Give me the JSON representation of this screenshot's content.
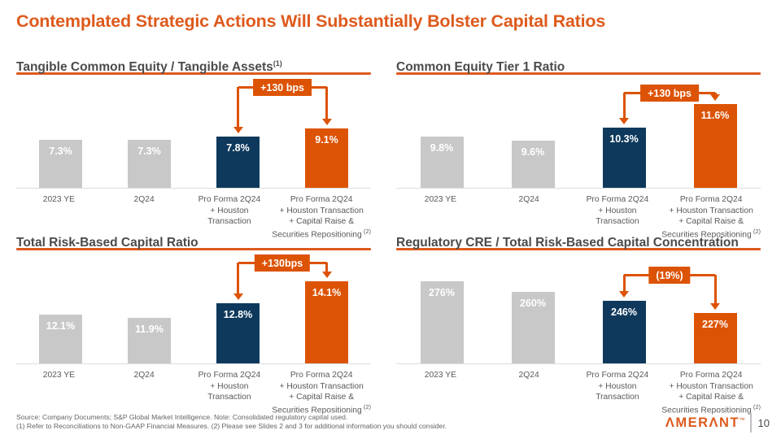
{
  "slide": {
    "title": "Contemplated Strategic Actions Will Substantially Bolster Capital Ratios",
    "footer": {
      "source_line": "Source: Company Documents; S&P Global Market Intelligence. Note: Consolidated regulatory capital used.",
      "notes_line": "(1) Refer to Reconciliations to Non-GAAP Financial Measures. (2) Please see Slides 2 and 3 for additional information you should consider."
    },
    "brand": {
      "name": "AMERANT",
      "display": "ΛMERΛNT",
      "tm": "™"
    },
    "page_number": "10"
  },
  "colors": {
    "accent_orange": "#DD5A1E",
    "bar_orange": "#DC5305",
    "navy": "#0E395C",
    "gray_bar": "#C8C8C8",
    "heading_text": "#4B4B4D",
    "axis_label": "#595959",
    "baseline": "#DCDCDC",
    "footer_text": "#646464"
  },
  "chart_data": [
    {
      "type": "bar",
      "title": "Tangible Common Equity / Tangible Assets",
      "title_sup": "(1)",
      "callout_label": "+130 bps",
      "ylim": [
        0,
        13
      ],
      "grid": false,
      "values": [
        7.3,
        7.3,
        7.8,
        9.1
      ],
      "value_labels": [
        "7.3%",
        "7.3%",
        "7.8%",
        "9.1%"
      ],
      "bar_colors": [
        "gray",
        "gray",
        "navy",
        "orange"
      ],
      "categories": [
        {
          "lines": [
            "2023 YE"
          ]
        },
        {
          "lines": [
            "2Q24"
          ]
        },
        {
          "lines": [
            "Pro Forma 2Q24",
            "+ Houston",
            "Transaction"
          ]
        },
        {
          "lines": [
            "Pro Forma 2Q24",
            "+ Houston Transaction",
            "+ Capital Raise &",
            "Securities Repositioning"
          ],
          "sup": "(2)"
        }
      ]
    },
    {
      "type": "bar",
      "title": "Common Equity Tier 1 Ratio",
      "title_sup": "",
      "callout_label": "+130 bps",
      "ylim": [
        7,
        11.7
      ],
      "grid": false,
      "values": [
        9.8,
        9.6,
        10.3,
        11.6
      ],
      "value_labels": [
        "9.8%",
        "9.6%",
        "10.3%",
        "11.6%"
      ],
      "bar_colors": [
        "gray",
        "gray",
        "navy",
        "orange"
      ],
      "categories": [
        {
          "lines": [
            "2023 YE"
          ]
        },
        {
          "lines": [
            "2Q24"
          ]
        },
        {
          "lines": [
            "Pro Forma 2Q24",
            "+ Houston",
            "Transaction"
          ]
        },
        {
          "lines": [
            "Pro Forma 2Q24",
            "+ Houston Transaction",
            "+ Capital Raise &",
            "Securities Repositioning"
          ],
          "sup": "(2)"
        }
      ]
    },
    {
      "type": "bar",
      "title": "Total Risk-Based Capital Ratio",
      "title_sup": "",
      "callout_label": "+130bps",
      "ylim": [
        9.2,
        14.3
      ],
      "grid": false,
      "values": [
        12.1,
        11.9,
        12.8,
        14.1
      ],
      "value_labels": [
        "12.1%",
        "11.9%",
        "12.8%",
        "14.1%"
      ],
      "bar_colors": [
        "gray",
        "gray",
        "navy",
        "orange"
      ],
      "categories": [
        {
          "lines": [
            "2023 YE"
          ]
        },
        {
          "lines": [
            "2Q24"
          ]
        },
        {
          "lines": [
            "Pro Forma 2Q24",
            "+ Houston",
            "Transaction"
          ]
        },
        {
          "lines": [
            "Pro Forma 2Q24",
            "+ Houston Transaction",
            "+ Capital Raise &",
            "Securities Repositioning"
          ],
          "sup": "(2)"
        }
      ]
    },
    {
      "type": "bar",
      "title": "Regulatory CRE / Total Risk-Based Capital Concentration",
      "title_sup": "",
      "callout_label": "(19%)",
      "ylim": [
        150,
        281
      ],
      "grid": false,
      "values": [
        276,
        260,
        246,
        227
      ],
      "value_labels": [
        "276%",
        "260%",
        "246%",
        "227%"
      ],
      "bar_colors": [
        "gray",
        "gray",
        "navy",
        "orange"
      ],
      "categories": [
        {
          "lines": [
            "2023 YE"
          ]
        },
        {
          "lines": [
            "2Q24"
          ]
        },
        {
          "lines": [
            "Pro Forma 2Q24",
            "+ Houston",
            "Transaction"
          ]
        },
        {
          "lines": [
            "Pro Forma 2Q24",
            "+ Houston Transaction",
            "+ Capital Raise &",
            "Securities Repositioning"
          ],
          "sup": "(2)"
        }
      ]
    }
  ]
}
